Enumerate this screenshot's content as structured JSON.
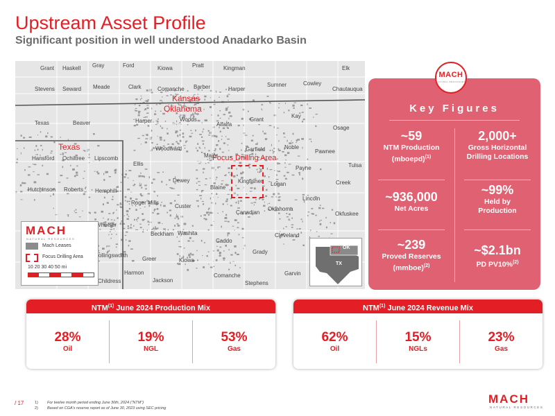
{
  "title": "Upstream Asset Profile",
  "subtitle": "Significant position in well understood Anadarko Basin",
  "map": {
    "state_labels": {
      "kansas": "Kansas",
      "oklahoma": "Oklahoma",
      "texas": "Texas"
    },
    "focus_label": "Focus Drilling Area",
    "counties": [
      "Grant",
      "Haskell",
      "Gray",
      "Ford",
      "Kiowa",
      "Pratt",
      "Kingman",
      "Elk",
      "Stevens",
      "Seward",
      "Meade",
      "Clark",
      "Comanche",
      "Barber",
      "Harper",
      "Sumner",
      "Cowley",
      "Chautauqua",
      "Texas",
      "Beaver",
      "Harper",
      "Woods",
      "Alfalfa",
      "Grant",
      "Kay",
      "Osage",
      "Hansford",
      "Ochiltree",
      "Lipscomb",
      "Ellis",
      "Woodward",
      "Major",
      "Garfield",
      "Noble",
      "Pawnee",
      "Tulsa",
      "Hutchinson",
      "Roberts",
      "Hemphill",
      "Dewey",
      "Blaine",
      "Kingfisher",
      "Logan",
      "Payne",
      "Creek",
      "Roger Mills",
      "Custer",
      "Lincoln",
      "Okfuskee",
      "Wheeler",
      "Beckham",
      "Washita",
      "Canadian",
      "Oklahoma",
      "Caddo",
      "Cleveland",
      "Greer",
      "Kiowa",
      "Grady",
      "Harmon",
      "Jackson",
      "Comanche",
      "Garvin",
      "Stephens",
      "Childress",
      "Collingsworth"
    ],
    "legend": {
      "logo": "MACH",
      "tagline": "NATURAL RESOURCES",
      "leases": "Mach Leases",
      "focus": "Focus Drilling Area",
      "scale": "10  20  30  40  50 mi"
    },
    "inset": {
      "ok": "OK",
      "tx": "TX"
    }
  },
  "key_figures": {
    "logo": "MACH",
    "logo_tag": "NATURAL RESOURCES",
    "title": "Key Figures",
    "items": [
      {
        "value": "~59",
        "label": "NTM Production",
        "label2": "(mboepd)",
        "note": "(1)"
      },
      {
        "value": "2,000+",
        "label": "Gross Horizontal",
        "label2": "Drilling Locations",
        "note": ""
      },
      {
        "value": "~936,000",
        "label": "Net Acres",
        "label2": "",
        "note": ""
      },
      {
        "value": "~99%",
        "label": "Held by",
        "label2": "Production",
        "note": ""
      },
      {
        "value": "~239",
        "label": "Proved Reserves",
        "label2": "(mmboe)",
        "note": "(2)"
      },
      {
        "value": "~$2.1bn",
        "label": "PD PV10%",
        "label2": "",
        "note": "(2)"
      }
    ]
  },
  "production_mix": {
    "prefix": "NTM",
    "note": "(1)",
    "title": " June 2024 Production Mix",
    "items": [
      {
        "pct": "28%",
        "name": "Oil"
      },
      {
        "pct": "19%",
        "name": "NGL"
      },
      {
        "pct": "53%",
        "name": "Gas"
      }
    ]
  },
  "revenue_mix": {
    "prefix": "NTM",
    "note": "(1)",
    "title": " June 2024 Revenue Mix",
    "items": [
      {
        "pct": "62%",
        "name": "Oil"
      },
      {
        "pct": "15%",
        "name": "NGLs"
      },
      {
        "pct": "23%",
        "name": "Gas"
      }
    ]
  },
  "footer": {
    "page": "/ 17",
    "notes": [
      {
        "num": "1)",
        "text": "For twelve month period ending June 30th, 2024 (\"NTM\")"
      },
      {
        "num": "2)",
        "text": "Based on CGA's reserve report as of June 30, 2023 using SEC pricing"
      }
    ],
    "logo": "MACH",
    "tagline": "NATURAL RESOURCES"
  },
  "colors": {
    "brand_red": "#e31e24",
    "panel_pink": "#e06272",
    "map_gray": "#e6e6e6",
    "lease_gray": "#8c8c8c"
  }
}
